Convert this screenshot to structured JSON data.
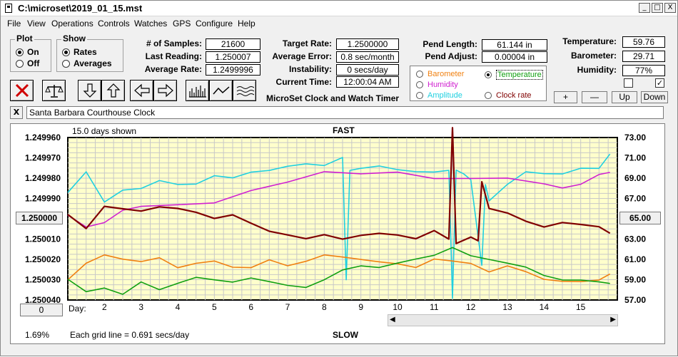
{
  "window": {
    "title": "C:\\microset\\2019_01_15.mst",
    "controls": {
      "minimize": "_",
      "maximize": "□",
      "close": "X"
    }
  },
  "menu": [
    "File",
    "View",
    "Operations",
    "Controls",
    "Watches",
    "GPS",
    "Configure",
    "Help"
  ],
  "plot_group": {
    "title": "Plot",
    "options": [
      "On",
      "Off"
    ],
    "selected": "On"
  },
  "show_group": {
    "title": "Show",
    "options": [
      "Rates",
      "Averages"
    ],
    "selected": "Rates"
  },
  "stats": {
    "samples": {
      "label": "# of Samples:",
      "value": "21600"
    },
    "last_reading": {
      "label": "Last Reading:",
      "value": "1.250007"
    },
    "average_rate": {
      "label": "Average Rate:",
      "value": "1.2499996"
    },
    "target_rate": {
      "label": "Target Rate:",
      "value": "1.2500000"
    },
    "average_error": {
      "label": "Average Error:",
      "value": "0.8 sec/month"
    },
    "instability": {
      "label": "Instability:",
      "value": "0 secs/day"
    },
    "current_time": {
      "label": "Current Time:",
      "value": "12:00:04 AM"
    },
    "pend_length": {
      "label": "Pend Length:",
      "value": "61.144 in"
    },
    "pend_adjust": {
      "label": "Pend Adjust:",
      "value": "0.00004 in"
    },
    "temperature": {
      "label": "Temperature:",
      "value": "59.76"
    },
    "barometer": {
      "label": "Barometer:",
      "value": "29.71"
    },
    "humidity": {
      "label": "Humidity:",
      "value": "77%"
    }
  },
  "app_subtitle": "MicroSet Clock and Watch Timer",
  "legend": {
    "items": [
      {
        "label": "Barometer",
        "color": "#f08010",
        "selected": false
      },
      {
        "label": "Temperature",
        "color": "#10a010",
        "selected": true
      },
      {
        "label": "Humidity",
        "color": "#d020d0",
        "selected": false
      },
      {
        "label": "Amplitude",
        "color": "#20d0e0",
        "selected": false
      },
      {
        "label": "Clock rate",
        "color": "#800000",
        "selected": false
      }
    ]
  },
  "scale_buttons": {
    "plus": "+",
    "minus": "—",
    "up": "Up",
    "down": "Down"
  },
  "toolbar_icons": [
    "clear-x-icon",
    "balance-scale-icon",
    "arrow-down-icon",
    "arrow-up-icon",
    "arrow-left-icon",
    "arrow-right-icon",
    "bar-chart-icon",
    "line-wave-icon",
    "ripple-icon"
  ],
  "watch_name": "Santa Barbara Courthouse Clock",
  "watch_close": "X",
  "chart_data": {
    "type": "line",
    "days_shown": "15.0 days shown",
    "top_label": "FAST",
    "bottom_label": "SLOW",
    "x_axis_prefix": "Day:",
    "x_ticks": [
      "2",
      "3",
      "4",
      "5",
      "6",
      "7",
      "8",
      "9",
      "10",
      "11",
      "12",
      "13",
      "14",
      "15"
    ],
    "left_ticks": [
      "1.249960",
      "1.249970",
      "1.249980",
      "1.249990",
      "1.250000",
      "1.250010",
      "1.250020",
      "1.250030",
      "1.250040"
    ],
    "right_ticks": [
      "73.00",
      "71.00",
      "69.00",
      "67.00",
      "65.00",
      "63.00",
      "61.00",
      "59.00",
      "57.00"
    ],
    "left_center_button": "1.250000",
    "right_center_button": "65.00",
    "bottom_left_button": "0",
    "grid_note": "Each grid line = 0.691 secs/day",
    "percent": "1.69%",
    "xlim": [
      1,
      16
    ],
    "left_ylim": [
      1.24996,
      1.25004
    ],
    "right_ylim": [
      57,
      73
    ],
    "grid": true,
    "series": [
      {
        "name": "Amplitude",
        "color": "#20d0e0",
        "x": [
          1,
          1.5,
          2,
          2.5,
          3,
          3.5,
          4,
          4.5,
          5,
          5.5,
          6,
          6.5,
          7,
          7.5,
          8,
          8.5,
          8.6,
          8.7,
          9,
          9.5,
          10,
          10.5,
          11,
          11.4,
          11.5,
          11.6,
          11.8,
          12,
          12.3,
          12.4,
          12.5,
          13,
          13.5,
          14,
          14.5,
          15,
          15.5,
          15.8
        ],
        "y": [
          1.249987,
          1.249977,
          1.249992,
          1.249986,
          1.249985,
          1.249981,
          1.249983,
          1.249983,
          1.249979,
          1.24998,
          1.249977,
          1.249976,
          1.249974,
          1.249973,
          1.249974,
          1.24997,
          1.25003,
          1.249976,
          1.249975,
          1.249974,
          1.249976,
          1.249977,
          1.249977,
          1.249976,
          1.250039,
          1.249976,
          1.249978,
          1.249981,
          1.250023,
          1.249983,
          1.249991,
          1.249983,
          1.249977,
          1.249978,
          1.249978,
          1.249975,
          1.249975,
          1.249968
        ]
      },
      {
        "name": "Humidity",
        "color": "#d020d0",
        "x": [
          1,
          1.5,
          2,
          2.5,
          3,
          4,
          5,
          6,
          7,
          8,
          9,
          10,
          11,
          12,
          13,
          14,
          14.5,
          15,
          15.5,
          15.8
        ],
        "y": [
          1.249998,
          1.250004,
          1.250002,
          1.249996,
          1.249994,
          1.249993,
          1.249992,
          1.249986,
          1.249982,
          1.249977,
          1.249978,
          1.249977,
          1.24998,
          1.24998,
          1.24998,
          1.249983,
          1.249985,
          1.249983,
          1.249978,
          1.249977
        ]
      },
      {
        "name": "Clock rate",
        "color": "#800000",
        "x": [
          1,
          1.5,
          2,
          2.5,
          3,
          3.5,
          4,
          4.5,
          5,
          5.5,
          6,
          6.5,
          7,
          7.5,
          8,
          8.5,
          9,
          9.5,
          10,
          10.5,
          11,
          11.4,
          11.5,
          11.6,
          12,
          12.2,
          12.3,
          12.5,
          13,
          13.5,
          14,
          14.5,
          15,
          15.5,
          15.8
        ],
        "y": [
          1.249998,
          1.250005,
          1.249994,
          1.249995,
          1.249996,
          1.249994,
          1.249995,
          1.249997,
          1.25,
          1.249998,
          1.250002,
          1.250006,
          1.250008,
          1.25001,
          1.250008,
          1.25001,
          1.250008,
          1.250007,
          1.250008,
          1.25001,
          1.250006,
          1.25001,
          1.249955,
          1.250012,
          1.250009,
          1.250011,
          1.249982,
          1.249995,
          1.249997,
          1.250001,
          1.250004,
          1.250002,
          1.250003,
          1.250004,
          1.250007
        ]
      },
      {
        "name": "Barometer",
        "color": "#f08010",
        "x": [
          1,
          1.5,
          2,
          2.5,
          3,
          3.5,
          4,
          4.5,
          5,
          5.5,
          6,
          6.5,
          7,
          7.5,
          8,
          8.5,
          9,
          9.5,
          10,
          10.5,
          11,
          11.5,
          12,
          12.5,
          13,
          13.5,
          14,
          14.5,
          15,
          15.5,
          15.8
        ],
        "y": [
          1.25003,
          1.250022,
          1.250018,
          1.25002,
          1.250021,
          1.250019,
          1.250024,
          1.250022,
          1.250021,
          1.250024,
          1.250024,
          1.25002,
          1.250023,
          1.250021,
          1.250018,
          1.250019,
          1.25002,
          1.250021,
          1.250022,
          1.250024,
          1.25002,
          1.250021,
          1.250022,
          1.250026,
          1.250023,
          1.250026,
          1.25003,
          1.250031,
          1.250031,
          1.25003,
          1.250027
        ]
      },
      {
        "name": "Temperature",
        "color": "#10a010",
        "x": [
          1,
          1.5,
          2,
          2.5,
          3,
          3.5,
          4,
          4.5,
          5,
          5.5,
          6,
          6.5,
          7,
          7.5,
          8,
          8.5,
          9,
          9.5,
          10,
          10.5,
          11,
          11.5,
          12,
          12.5,
          13,
          13.5,
          14,
          14.5,
          15,
          15.5,
          15.8
        ],
        "y": [
          1.25003,
          1.250036,
          1.250034,
          1.250037,
          1.250031,
          1.250035,
          1.250032,
          1.250029,
          1.25003,
          1.250031,
          1.250029,
          1.250031,
          1.250033,
          1.250034,
          1.25003,
          1.250025,
          1.250023,
          1.250024,
          1.250022,
          1.25002,
          1.250018,
          1.250014,
          1.250018,
          1.25002,
          1.250022,
          1.250024,
          1.250028,
          1.25003,
          1.25003,
          1.250031,
          1.250032
        ]
      }
    ]
  }
}
